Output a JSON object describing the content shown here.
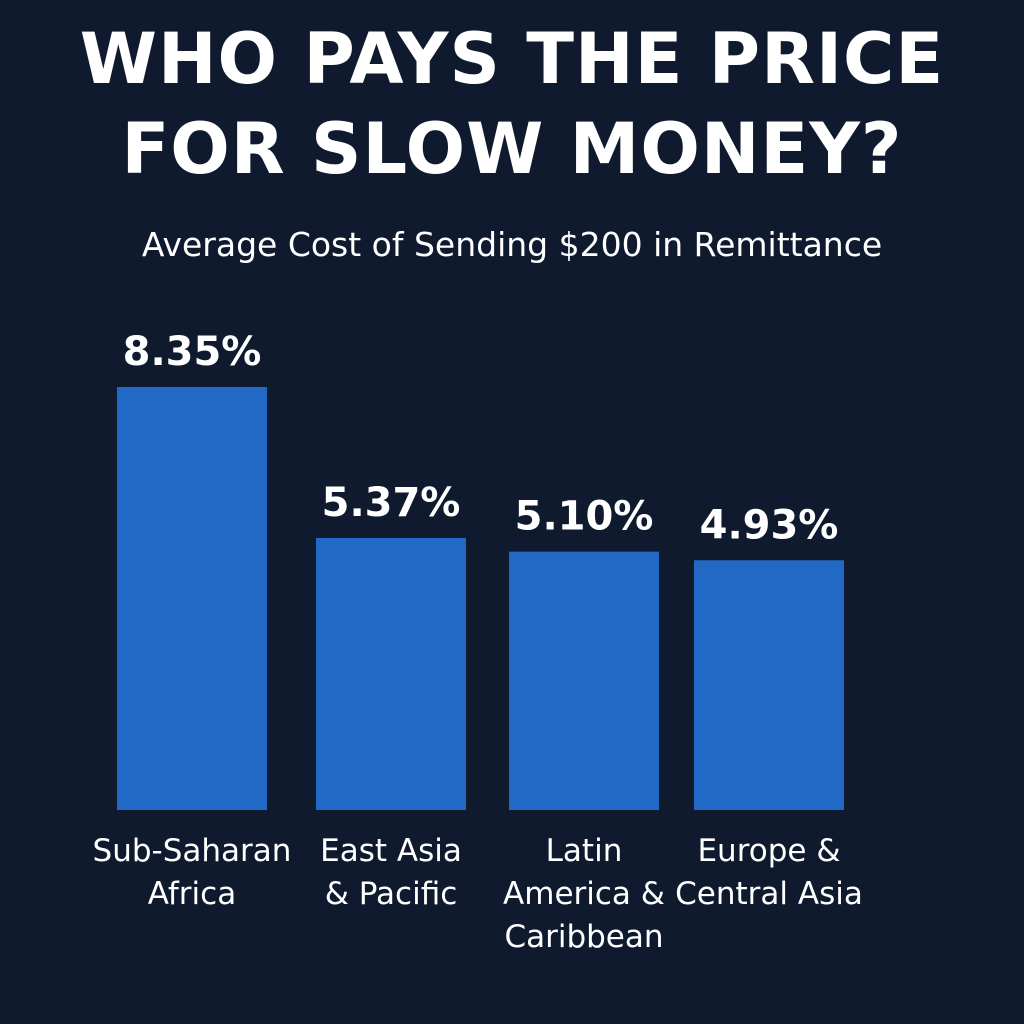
{
  "title_lines": [
    "WHO PAYS THE PRICE",
    "FOR SLOW MONEY?"
  ],
  "subtitle": "Average Cost of Sending $200 in Remittance",
  "colors": {
    "background": "#0f1a2e",
    "bar": "#2269c6",
    "text": "#ffffff"
  },
  "chart_data": {
    "type": "bar",
    "title": "WHO PAYS THE PRICE FOR SLOW MONEY?",
    "subtitle": "Average Cost of Sending $200 in Remittance",
    "categories": [
      [
        "Sub-Saharan",
        "Africa"
      ],
      [
        "East Asia",
        "& Pacific"
      ],
      [
        "Latin",
        "America &",
        "Caribbean"
      ],
      [
        "Europe &",
        "Central Asia"
      ]
    ],
    "values": [
      8.35,
      5.37,
      5.1,
      4.93
    ],
    "value_labels": [
      "8.35%",
      "5.37%",
      "5.10%",
      "4.93%"
    ],
    "xlabel": "",
    "ylabel": "",
    "grid": false
  }
}
